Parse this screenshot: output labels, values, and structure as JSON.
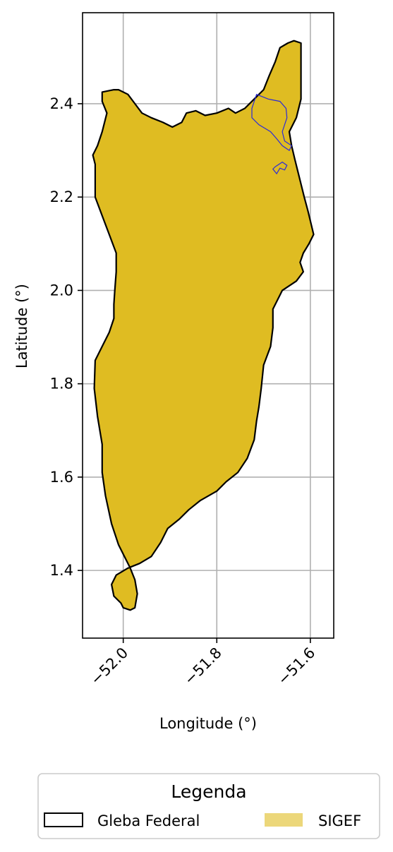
{
  "chart_data": {
    "type": "map",
    "xlabel": "Longitude (°)",
    "ylabel": "Latitude (°)",
    "xlim": [
      -52.087,
      -51.55
    ],
    "ylim": [
      1.255,
      2.595
    ],
    "x_ticks": [
      -52.0,
      -51.8,
      -51.6
    ],
    "x_tick_labels": [
      "−52.0",
      "−51.8",
      "−51.6"
    ],
    "y_ticks": [
      1.4,
      1.6,
      1.8,
      2.0,
      2.2,
      2.4
    ],
    "y_tick_labels": [
      "1.4",
      "1.6",
      "1.8",
      "2.0",
      "2.2",
      "2.4"
    ],
    "grid": true,
    "colors": {
      "sigef_fill": "#dfbc22",
      "gleba_outline": "#000000",
      "parcel_outline": "#2a2ad8",
      "grid": "#b0b0b0"
    },
    "legend": {
      "title": "Legenda",
      "placement": "below",
      "entries": [
        "Gleba Federal",
        "SIGEF"
      ]
    },
    "sigef_outline": [
      [
        -51.62,
        2.53
      ],
      [
        -51.62,
        2.41
      ],
      [
        -51.63,
        2.37
      ],
      [
        -51.645,
        2.34
      ],
      [
        -51.64,
        2.31
      ],
      [
        -51.633,
        2.28
      ],
      [
        -51.623,
        2.24
      ],
      [
        -51.613,
        2.2
      ],
      [
        -51.605,
        2.17
      ],
      [
        -51.593,
        2.12
      ],
      [
        -51.603,
        2.1
      ],
      [
        -51.615,
        2.08
      ],
      [
        -51.622,
        2.06
      ],
      [
        -51.615,
        2.04
      ],
      [
        -51.63,
        2.02
      ],
      [
        -51.66,
        2.0
      ],
      [
        -51.68,
        1.96
      ],
      [
        -51.68,
        1.92
      ],
      [
        -51.685,
        1.88
      ],
      [
        -51.7,
        1.84
      ],
      [
        -51.705,
        1.79
      ],
      [
        -51.71,
        1.75
      ],
      [
        -51.715,
        1.72
      ],
      [
        -51.72,
        1.68
      ],
      [
        -51.735,
        1.64
      ],
      [
        -51.755,
        1.61
      ],
      [
        -51.78,
        1.59
      ],
      [
        -51.8,
        1.57
      ],
      [
        -51.835,
        1.55
      ],
      [
        -51.86,
        1.53
      ],
      [
        -51.88,
        1.51
      ],
      [
        -51.905,
        1.49
      ],
      [
        -51.92,
        1.46
      ],
      [
        -51.94,
        1.43
      ],
      [
        -51.965,
        1.415
      ],
      [
        -51.99,
        1.405
      ],
      [
        -52.015,
        1.39
      ],
      [
        -52.025,
        1.37
      ],
      [
        -52.02,
        1.345
      ],
      [
        -52.005,
        1.33
      ],
      [
        -52.0,
        1.32
      ],
      [
        -51.985,
        1.315
      ],
      [
        -51.975,
        1.32
      ],
      [
        -51.97,
        1.35
      ],
      [
        -51.975,
        1.38
      ],
      [
        -51.985,
        1.405
      ],
      [
        -51.995,
        1.425
      ],
      [
        -52.01,
        1.455
      ],
      [
        -52.025,
        1.5
      ],
      [
        -52.038,
        1.56
      ],
      [
        -52.045,
        1.61
      ],
      [
        -52.045,
        1.67
      ],
      [
        -52.055,
        1.73
      ],
      [
        -52.062,
        1.79
      ],
      [
        -52.06,
        1.85
      ],
      [
        -52.045,
        1.88
      ],
      [
        -52.03,
        1.91
      ],
      [
        -52.02,
        1.94
      ],
      [
        -52.02,
        1.97
      ],
      [
        -52.018,
        2.0
      ],
      [
        -52.015,
        2.04
      ],
      [
        -52.015,
        2.08
      ],
      [
        -52.03,
        2.12
      ],
      [
        -52.045,
        2.16
      ],
      [
        -52.06,
        2.2
      ],
      [
        -52.06,
        2.25
      ],
      [
        -52.06,
        2.27
      ],
      [
        -52.065,
        2.29
      ],
      [
        -52.055,
        2.31
      ],
      [
        -52.045,
        2.34
      ],
      [
        -52.035,
        2.38
      ],
      [
        -52.045,
        2.405
      ],
      [
        -52.045,
        2.425
      ],
      [
        -52.02,
        2.43
      ],
      [
        -52.01,
        2.43
      ],
      [
        -51.99,
        2.42
      ],
      [
        -51.975,
        2.4
      ],
      [
        -51.96,
        2.38
      ],
      [
        -51.94,
        2.37
      ],
      [
        -51.915,
        2.36
      ],
      [
        -51.895,
        2.35
      ],
      [
        -51.875,
        2.36
      ],
      [
        -51.865,
        2.38
      ],
      [
        -51.845,
        2.385
      ],
      [
        -51.825,
        2.375
      ],
      [
        -51.8,
        2.38
      ],
      [
        -51.775,
        2.39
      ],
      [
        -51.76,
        2.38
      ],
      [
        -51.74,
        2.39
      ],
      [
        -51.72,
        2.41
      ],
      [
        -51.7,
        2.43
      ],
      [
        -51.688,
        2.46
      ],
      [
        -51.675,
        2.49
      ],
      [
        -51.665,
        2.52
      ],
      [
        -51.648,
        2.53
      ],
      [
        -51.635,
        2.535
      ]
    ],
    "parcels": [
      [
        [
          -51.715,
          2.42
        ],
        [
          -51.69,
          2.41
        ],
        [
          -51.665,
          2.405
        ],
        [
          -51.652,
          2.39
        ],
        [
          -51.65,
          2.37
        ],
        [
          -51.66,
          2.34
        ],
        [
          -51.655,
          2.32
        ],
        [
          -51.64,
          2.31
        ],
        [
          -51.645,
          2.3
        ],
        [
          -51.66,
          2.31
        ],
        [
          -51.672,
          2.325
        ],
        [
          -51.685,
          2.34
        ],
        [
          -51.71,
          2.355
        ],
        [
          -51.725,
          2.37
        ],
        [
          -51.725,
          2.39
        ]
      ],
      [
        [
          -51.675,
          2.265
        ],
        [
          -51.66,
          2.275
        ],
        [
          -51.65,
          2.268
        ],
        [
          -51.655,
          2.258
        ],
        [
          -51.665,
          2.262
        ],
        [
          -51.672,
          2.25
        ],
        [
          -51.68,
          2.26
        ]
      ]
    ]
  }
}
